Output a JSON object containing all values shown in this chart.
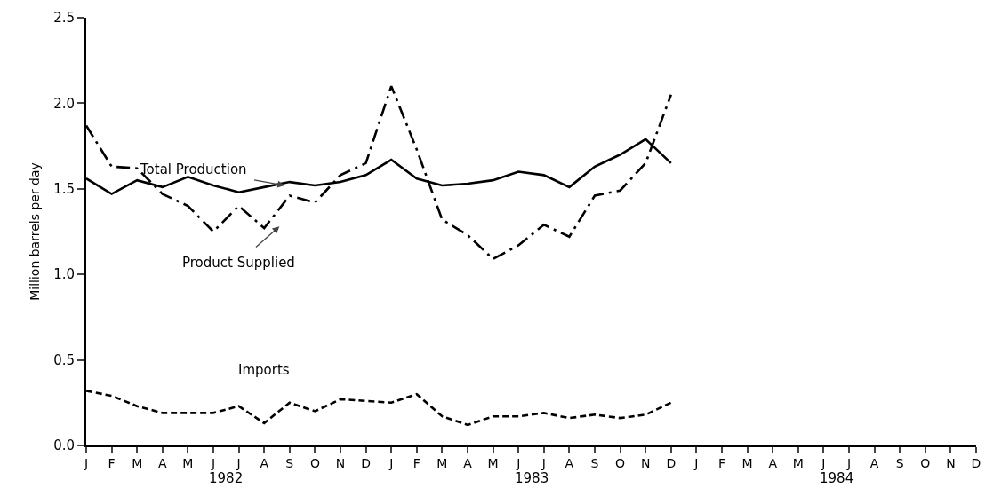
{
  "chart_data": {
    "type": "line",
    "ylabel": "Million barrels per day",
    "categories": [
      "J",
      "F",
      "M",
      "A",
      "M",
      "J",
      "J",
      "A",
      "S",
      "O",
      "N",
      "D",
      "J",
      "F",
      "M",
      "A",
      "M",
      "J",
      "J",
      "A",
      "S",
      "O",
      "N",
      "D",
      "J",
      "F",
      "M",
      "A",
      "M",
      "J",
      "J",
      "A",
      "S",
      "O",
      "N",
      "D"
    ],
    "series": [
      {
        "name": "Total Production",
        "color": "#000000",
        "line_style": "solid",
        "values": [
          1.56,
          1.47,
          1.55,
          1.51,
          1.57,
          1.52,
          1.48,
          1.51,
          1.54,
          1.52,
          1.54,
          1.58,
          1.67,
          1.56,
          1.52,
          1.53,
          1.55,
          1.6,
          1.58,
          1.51,
          1.63,
          1.7,
          1.79,
          1.65,
          null,
          null,
          null,
          null,
          null,
          null,
          null,
          null,
          null,
          null,
          null,
          null
        ]
      },
      {
        "name": "Product Supplied",
        "color": "#000000",
        "line_style": "dashdot",
        "values": [
          1.87,
          1.63,
          1.62,
          1.47,
          1.4,
          1.25,
          1.4,
          1.27,
          1.46,
          1.42,
          1.58,
          1.65,
          2.1,
          1.73,
          1.32,
          1.23,
          1.09,
          1.17,
          1.29,
          1.22,
          1.46,
          1.49,
          1.65,
          2.05,
          null,
          null,
          null,
          null,
          null,
          null,
          null,
          null,
          null,
          null,
          null,
          null
        ]
      },
      {
        "name": "Imports",
        "color": "#000000",
        "line_style": "dashed",
        "values": [
          0.32,
          0.29,
          0.23,
          0.19,
          0.19,
          0.19,
          0.23,
          0.13,
          0.25,
          0.2,
          0.27,
          0.26,
          0.25,
          0.3,
          0.17,
          0.12,
          0.17,
          0.17,
          0.19,
          0.16,
          0.18,
          0.16,
          0.18,
          0.25,
          null,
          null,
          null,
          null,
          null,
          null,
          null,
          null,
          null,
          null,
          null,
          null
        ]
      }
    ],
    "annotations": [
      "1982",
      "1983",
      "1984"
    ],
    "ylim": [
      0,
      2.5
    ],
    "yticks": [
      {
        "value": 0,
        "label": "0.0"
      },
      {
        "value": 0.5,
        "label": "0.5"
      },
      {
        "value": 1,
        "label": "1.0"
      },
      {
        "value": 1.5,
        "label": "1.5"
      },
      {
        "value": 2,
        "label": "2.0"
      },
      {
        "value": 2.5,
        "label": "2.5"
      }
    ],
    "grid": false,
    "legend": false,
    "marker": "none"
  }
}
